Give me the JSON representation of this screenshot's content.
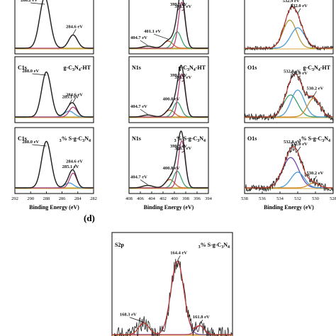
{
  "figure": {
    "panel_letter": "(d)",
    "xlabel": "Binding Energy (eV)"
  },
  "chart_data": [
    {
      "id": "c1s-row1",
      "type": "line",
      "element": "C1s",
      "sample": "",
      "xlim": [
        292,
        282
      ],
      "x_ticks": [],
      "title": "",
      "xlabel": "",
      "annotations": [
        {
          "text": "288.2 eV",
          "x": 288.2
        },
        {
          "text": "284.6 eV",
          "x": 284.6
        }
      ],
      "peaks": [
        {
          "center": 288.2,
          "height": 1.0,
          "width": 0.65,
          "color": "#b59a3a"
        },
        {
          "center": 284.6,
          "height": 0.26,
          "width": 0.55,
          "color": "#b0427a"
        }
      ]
    },
    {
      "id": "c1s-row2",
      "type": "line",
      "element": "C1s",
      "sample": "g-C3N4-HT",
      "xlim": [
        292,
        282
      ],
      "x_ticks": [],
      "title": "",
      "xlabel": "",
      "annotations": [
        {
          "text": "288.0 eV",
          "x": 288.0
        },
        {
          "text": "285.1 eV",
          "x": 285.1
        },
        {
          "text": "284.6 eV",
          "x": 284.6
        }
      ],
      "peaks": [
        {
          "center": 288.0,
          "height": 0.92,
          "width": 0.6,
          "color": "#b59a3a"
        },
        {
          "center": 285.1,
          "height": 0.12,
          "width": 0.6,
          "color": "#4a9ad6"
        },
        {
          "center": 284.6,
          "height": 0.2,
          "width": 0.5,
          "color": "#b0427a"
        }
      ]
    },
    {
      "id": "c1s-row3",
      "type": "line",
      "element": "C1s",
      "sample": "3% S-g-C3N4",
      "xlim": [
        292,
        282
      ],
      "x_ticks": [
        292,
        290,
        288,
        286,
        284,
        282
      ],
      "title": "",
      "xlabel": "Binding Energy (eV)",
      "annotations": [
        {
          "text": "288.0 eV",
          "x": 288.0
        },
        {
          "text": "285.1 eV",
          "x": 285.1
        },
        {
          "text": "284.6 eV",
          "x": 284.6
        }
      ],
      "peaks": [
        {
          "center": 288.0,
          "height": 0.95,
          "width": 0.6,
          "color": "#b59a3a"
        },
        {
          "center": 285.1,
          "height": 0.1,
          "width": 0.55,
          "color": "#4a9ad6"
        },
        {
          "center": 284.6,
          "height": 0.3,
          "width": 0.45,
          "color": "#b0427a"
        }
      ]
    },
    {
      "id": "n1s-row1",
      "type": "line",
      "element": "N1s",
      "sample": "",
      "xlim": [
        408,
        394
      ],
      "x_ticks": [],
      "title": "",
      "xlabel": "",
      "annotations": [
        {
          "text": "404.7 eV",
          "x": 404.7
        },
        {
          "text": "401.1 eV",
          "x": 401.1
        },
        {
          "text": "399.5 eV",
          "x": 399.5
        },
        {
          "text": "398.7 eV",
          "x": 398.7
        }
      ],
      "peaks": [
        {
          "center": 404.7,
          "height": 0.04,
          "width": 0.9,
          "color": "#b59a3a"
        },
        {
          "center": 401.1,
          "height": 0.14,
          "width": 0.8,
          "color": "#d0653a"
        },
        {
          "center": 399.5,
          "height": 0.32,
          "width": 0.7,
          "color": "#3aa06a"
        },
        {
          "center": 398.7,
          "height": 0.9,
          "width": 0.6,
          "color": "#b0427a"
        }
      ]
    },
    {
      "id": "n1s-row2",
      "type": "line",
      "element": "N1s",
      "sample": "g-C3N4-HT",
      "xlim": [
        408,
        394
      ],
      "x_ticks": [],
      "title": "",
      "xlabel": "",
      "annotations": [
        {
          "text": "404.7 eV",
          "x": 404.7
        },
        {
          "text": "400.8 eV",
          "x": 400.8
        },
        {
          "text": "399.5 eV",
          "x": 399.5
        },
        {
          "text": "398.7 eV",
          "x": 398.7
        }
      ],
      "peaks": [
        {
          "center": 404.7,
          "height": 0.04,
          "width": 0.9,
          "color": "#b59a3a"
        },
        {
          "center": 400.8,
          "height": 0.14,
          "width": 0.8,
          "color": "#d0653a"
        },
        {
          "center": 399.5,
          "height": 0.3,
          "width": 0.7,
          "color": "#3aa06a"
        },
        {
          "center": 398.7,
          "height": 0.88,
          "width": 0.6,
          "color": "#b0427a"
        }
      ]
    },
    {
      "id": "n1s-row3",
      "type": "line",
      "element": "N1s",
      "sample": "3% S-g-C3N4",
      "xlim": [
        408,
        394
      ],
      "x_ticks": [
        408,
        406,
        404,
        402,
        400,
        398,
        396,
        394
      ],
      "title": "",
      "xlabel": "Binding Energy (eV)",
      "annotations": [
        {
          "text": "404.7 eV",
          "x": 404.7
        },
        {
          "text": "400.8 eV",
          "x": 400.8
        },
        {
          "text": "399.5 eV",
          "x": 399.5
        },
        {
          "text": "398.7 eV",
          "x": 398.7
        }
      ],
      "peaks": [
        {
          "center": 404.7,
          "height": 0.05,
          "width": 0.9,
          "color": "#b59a3a"
        },
        {
          "center": 400.8,
          "height": 0.17,
          "width": 0.8,
          "color": "#d0653a"
        },
        {
          "center": 399.5,
          "height": 0.34,
          "width": 0.7,
          "color": "#3aa06a"
        },
        {
          "center": 398.7,
          "height": 0.96,
          "width": 0.6,
          "color": "#b0427a"
        }
      ]
    },
    {
      "id": "o1s-row1",
      "type": "line",
      "element": "",
      "sample": "",
      "xlim": [
        538,
        528
      ],
      "x_ticks": [],
      "title": "",
      "xlabel": "",
      "noise": 0.04,
      "annotations": [
        {
          "text": "532.9 eV",
          "x": 532.9
        },
        {
          "text": "532.0 eV",
          "x": 532.0
        }
      ],
      "peaks": [
        {
          "center": 532.9,
          "height": 0.55,
          "width": 0.75,
          "color": "#b59a3a"
        },
        {
          "center": 532.0,
          "height": 0.4,
          "width": 0.8,
          "color": "#4a9ad6"
        }
      ]
    },
    {
      "id": "o1s-row2",
      "type": "line",
      "element": "O1s",
      "sample": "g-C3N4-HT",
      "xlim": [
        538,
        528
      ],
      "x_ticks": [],
      "title": "",
      "xlabel": "",
      "noise": 0.07,
      "annotations": [
        {
          "text": "532.8 eV",
          "x": 532.8
        },
        {
          "text": "532.0 eV",
          "x": 532.0
        },
        {
          "text": "530.2 eV",
          "x": 530.2
        }
      ],
      "peaks": [
        {
          "center": 532.8,
          "height": 0.45,
          "width": 0.8,
          "color": "#3aa06a"
        },
        {
          "center": 532.0,
          "height": 0.55,
          "width": 0.75,
          "color": "#4a9ad6"
        },
        {
          "center": 530.2,
          "height": 0.38,
          "width": 0.7,
          "color": "#d08a2a"
        }
      ]
    },
    {
      "id": "o1s-row3",
      "type": "line",
      "element": "O1s",
      "sample": "3% S-g-C3N4",
      "xlim": [
        538,
        528
      ],
      "x_ticks": [
        538,
        536,
        534,
        532,
        530,
        528
      ],
      "title": "",
      "xlabel": "Binding Energy (eV)",
      "noise": 0.08,
      "annotations": [
        {
          "text": "532.8 eV",
          "x": 532.8
        },
        {
          "text": "532.0 eV",
          "x": 532.0
        },
        {
          "text": "530.2 eV",
          "x": 530.2
        }
      ],
      "peaks": [
        {
          "center": 532.8,
          "height": 0.62,
          "width": 0.9,
          "color": "#6a4ab0"
        },
        {
          "center": 532.0,
          "height": 0.32,
          "width": 0.75,
          "color": "#4a9ad6"
        },
        {
          "center": 530.2,
          "height": 0.1,
          "width": 0.6,
          "color": "#d08a2a"
        }
      ]
    },
    {
      "id": "s2p",
      "type": "line",
      "element": "S2p",
      "sample": "3% S-g-C3N4",
      "xlim": [
        172,
        158
      ],
      "x_ticks": [],
      "title": "",
      "xlabel": "",
      "noise": 0.09,
      "annotations": [
        {
          "text": "168.3 eV",
          "x": 168.3
        },
        {
          "text": "164.4 eV",
          "x": 164.4
        },
        {
          "text": "161.8 eV",
          "x": 161.8
        }
      ],
      "peaks": [
        {
          "center": 168.3,
          "height": 0.13,
          "width": 0.6,
          "color": "#d08a2a"
        },
        {
          "center": 164.4,
          "height": 0.82,
          "width": 0.75,
          "color": "#7a5ab8"
        },
        {
          "center": 161.8,
          "height": 0.1,
          "width": 0.5,
          "color": "#b0427a"
        }
      ]
    }
  ]
}
